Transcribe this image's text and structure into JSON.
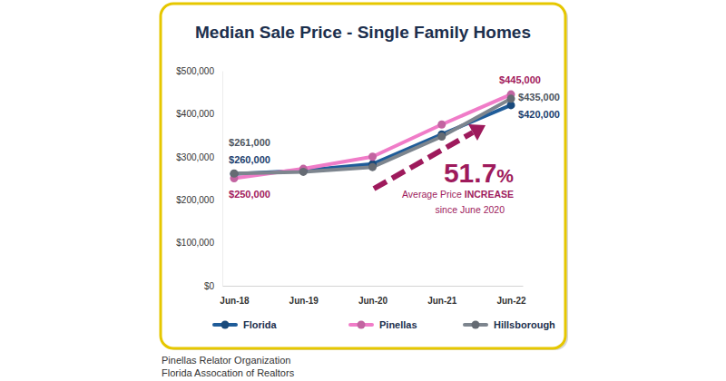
{
  "chart_data": {
    "type": "line",
    "title": "Median Sale Price - Single Family Homes",
    "categories": [
      "Jun-18",
      "Jun-19",
      "Jun-20",
      "Jun-21",
      "Jun-22"
    ],
    "series": [
      {
        "name": "Florida",
        "color": "#1f5c99",
        "marker": "circle",
        "values": [
          260000,
          268000,
          283000,
          352000,
          420000
        ],
        "value_labels": [
          "$260,000",
          null,
          null,
          null,
          "$420,000"
        ]
      },
      {
        "name": "Pinellas",
        "color": "#f07cc8",
        "marker": "circle",
        "values": [
          250000,
          272000,
          300000,
          375000,
          445000
        ],
        "value_labels": [
          "$250,000",
          null,
          null,
          null,
          "$445,000"
        ]
      },
      {
        "name": "Hillsborough",
        "color": "#7d858e",
        "marker": "circle",
        "values": [
          261000,
          265000,
          276000,
          347000,
          435000
        ],
        "value_labels": [
          "$261,000",
          null,
          null,
          null,
          "$435,000"
        ]
      }
    ],
    "ylim": [
      0,
      500000
    ],
    "yticks": [
      {
        "value": 0,
        "label": "$0"
      },
      {
        "value": 100000,
        "label": "$100,000"
      },
      {
        "value": 200000,
        "label": "$200,000"
      },
      {
        "value": 300000,
        "label": "$300,000"
      },
      {
        "value": 400000,
        "label": "$400,000"
      },
      {
        "value": 500000,
        "label": "$500,000"
      }
    ],
    "grid": false,
    "legend": "bottom",
    "data_labels": true,
    "annotations": [
      "51.7%",
      "Average Price INCREASE",
      "since June 2020"
    ],
    "source": [
      "Pinellas Relator Organization",
      "Florida Assocation of Realtors"
    ]
  }
}
